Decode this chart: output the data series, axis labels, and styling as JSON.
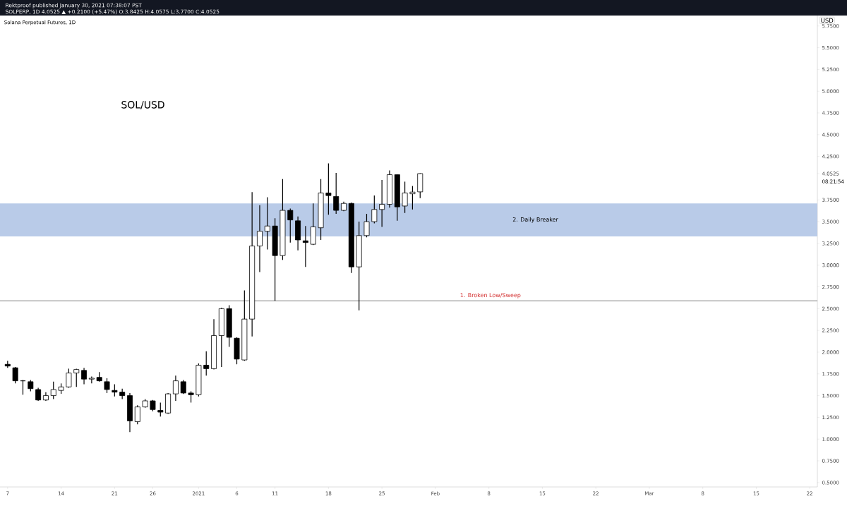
{
  "chart_data": {
    "type": "candlestick",
    "title": "SOL/USD",
    "subtitle": "Solana Perpetual Futures, 1D",
    "ylabel": "USD",
    "annotations": [
      "Rektproof published January 30, 2021 07:38:07 PST",
      "SOLPERP, 1D  4.0525 ▲ +0.2100 (+5.47%) O:3.8425 H:4.0575 L:3.7700 C:4.0525",
      "08:21:54"
    ],
    "x": [
      "2020-12-07",
      "2020-12-08",
      "2020-12-09",
      "2020-12-10",
      "2020-12-11",
      "2020-12-12",
      "2020-12-13",
      "2020-12-14",
      "2020-12-15",
      "2020-12-16",
      "2020-12-17",
      "2020-12-18",
      "2020-12-19",
      "2020-12-20",
      "2020-12-21",
      "2020-12-22",
      "2020-12-23",
      "2020-12-24",
      "2020-12-25",
      "2020-12-26",
      "2020-12-27",
      "2020-12-28",
      "2020-12-29",
      "2020-12-30",
      "2020-12-31",
      "2021-01-01",
      "2021-01-02",
      "2021-01-03",
      "2021-01-04",
      "2021-01-05",
      "2021-01-06",
      "2021-01-07",
      "2021-01-08",
      "2021-01-09",
      "2021-01-10",
      "2021-01-11",
      "2021-01-12",
      "2021-01-13",
      "2021-01-14",
      "2021-01-15",
      "2021-01-16",
      "2021-01-17",
      "2021-01-18",
      "2021-01-19",
      "2021-01-20",
      "2021-01-21",
      "2021-01-22",
      "2021-01-23",
      "2021-01-24",
      "2021-01-25",
      "2021-01-26",
      "2021-01-27",
      "2021-01-28",
      "2021-01-29",
      "2021-01-30"
    ],
    "ohlc": [
      [
        1.86,
        1.9,
        1.82,
        1.84
      ],
      [
        1.82,
        1.83,
        1.64,
        1.67
      ],
      [
        1.67,
        1.68,
        1.51,
        1.67
      ],
      [
        1.66,
        1.68,
        1.55,
        1.58
      ],
      [
        1.57,
        1.59,
        1.44,
        1.45
      ],
      [
        1.45,
        1.54,
        1.44,
        1.5
      ],
      [
        1.5,
        1.66,
        1.46,
        1.57
      ],
      [
        1.56,
        1.64,
        1.52,
        1.6
      ],
      [
        1.6,
        1.81,
        1.59,
        1.76
      ],
      [
        1.76,
        1.81,
        1.6,
        1.8
      ],
      [
        1.79,
        1.82,
        1.63,
        1.69
      ],
      [
        1.69,
        1.72,
        1.64,
        1.7
      ],
      [
        1.71,
        1.77,
        1.66,
        1.67
      ],
      [
        1.66,
        1.7,
        1.53,
        1.57
      ],
      [
        1.56,
        1.63,
        1.49,
        1.54
      ],
      [
        1.54,
        1.58,
        1.46,
        1.5
      ],
      [
        1.5,
        1.53,
        1.08,
        1.21
      ],
      [
        1.2,
        1.39,
        1.17,
        1.37
      ],
      [
        1.37,
        1.46,
        1.36,
        1.44
      ],
      [
        1.44,
        1.45,
        1.32,
        1.34
      ],
      [
        1.33,
        1.42,
        1.26,
        1.31
      ],
      [
        1.3,
        1.53,
        1.29,
        1.52
      ],
      [
        1.52,
        1.73,
        1.44,
        1.67
      ],
      [
        1.66,
        1.68,
        1.52,
        1.53
      ],
      [
        1.53,
        1.55,
        1.42,
        1.51
      ],
      [
        1.51,
        1.87,
        1.49,
        1.85
      ],
      [
        1.85,
        2.01,
        1.73,
        1.81
      ],
      [
        1.81,
        2.38,
        1.8,
        2.19
      ],
      [
        2.19,
        2.51,
        1.83,
        2.5
      ],
      [
        2.5,
        2.54,
        2.06,
        2.17
      ],
      [
        2.16,
        2.17,
        1.86,
        1.92
      ],
      [
        1.91,
        2.71,
        1.9,
        2.38
      ],
      [
        2.38,
        3.84,
        2.18,
        3.22
      ],
      [
        3.22,
        3.69,
        2.92,
        3.39
      ],
      [
        3.39,
        3.78,
        3.18,
        3.45
      ],
      [
        3.45,
        3.54,
        2.59,
        3.11
      ],
      [
        3.11,
        3.99,
        3.06,
        3.63
      ],
      [
        3.63,
        3.65,
        3.26,
        3.52
      ],
      [
        3.51,
        3.56,
        3.17,
        3.29
      ],
      [
        3.28,
        3.45,
        2.98,
        3.26
      ],
      [
        3.24,
        3.71,
        3.23,
        3.44
      ],
      [
        3.43,
        3.99,
        3.29,
        3.83
      ],
      [
        3.83,
        4.17,
        3.58,
        3.8
      ],
      [
        3.79,
        4.06,
        3.59,
        3.63
      ],
      [
        3.63,
        3.73,
        3.62,
        3.71
      ],
      [
        3.71,
        3.72,
        2.91,
        2.98
      ],
      [
        2.98,
        3.5,
        2.48,
        3.34
      ],
      [
        3.34,
        3.59,
        3.32,
        3.5
      ],
      [
        3.5,
        3.8,
        3.48,
        3.64
      ],
      [
        3.64,
        3.98,
        3.44,
        3.7
      ],
      [
        3.7,
        4.09,
        3.66,
        4.04
      ],
      [
        4.04,
        4.04,
        3.51,
        3.67
      ],
      [
        3.68,
        3.96,
        3.6,
        3.83
      ],
      [
        3.82,
        3.91,
        3.64,
        3.84
      ],
      [
        3.8425,
        4.0575,
        3.77,
        4.0525
      ]
    ],
    "xlim": [
      "2020-12-06",
      "2021-03-23"
    ],
    "xticks": [
      {
        "value": "2020-12-07",
        "label": "7"
      },
      {
        "value": "2020-12-14",
        "label": "14"
      },
      {
        "value": "2020-12-21",
        "label": "21"
      },
      {
        "value": "2020-12-26",
        "label": "26"
      },
      {
        "value": "2021-01-01",
        "label": "2021"
      },
      {
        "value": "2021-01-06",
        "label": "6"
      },
      {
        "value": "2021-01-11",
        "label": "11"
      },
      {
        "value": "2021-01-18",
        "label": "18"
      },
      {
        "value": "2021-01-25",
        "label": "25"
      },
      {
        "value": "2021-02-01",
        "label": "Feb"
      },
      {
        "value": "2021-02-08",
        "label": "8"
      },
      {
        "value": "2021-02-15",
        "label": "15"
      },
      {
        "value": "2021-02-22",
        "label": "22"
      },
      {
        "value": "2021-03-01",
        "label": "Mar"
      },
      {
        "value": "2021-03-08",
        "label": "8"
      },
      {
        "value": "2021-03-15",
        "label": "15"
      },
      {
        "value": "2021-03-22",
        "label": "22"
      }
    ],
    "ylim": [
      0.45,
      5.87
    ],
    "yticks": [
      {
        "value": 0.5,
        "label": "0.5000"
      },
      {
        "value": 0.75,
        "label": "0.7500"
      },
      {
        "value": 1.0,
        "label": "1.0000"
      },
      {
        "value": 1.25,
        "label": "1.2500"
      },
      {
        "value": 1.5,
        "label": "1.5000"
      },
      {
        "value": 1.75,
        "label": "1.7500"
      },
      {
        "value": 2.0,
        "label": "2.0000"
      },
      {
        "value": 2.25,
        "label": "2.2500"
      },
      {
        "value": 2.5,
        "label": "2.5000"
      },
      {
        "value": 2.75,
        "label": "2.7500"
      },
      {
        "value": 3.0,
        "label": "3.0000"
      },
      {
        "value": 3.25,
        "label": "3.2500"
      },
      {
        "value": 3.5,
        "label": "3.5000"
      },
      {
        "value": 3.75,
        "label": "3.7500"
      },
      {
        "value": 4.0525,
        "label": "4.0525"
      },
      {
        "value": 4.25,
        "label": "4.2500"
      },
      {
        "value": 4.5,
        "label": "4.5000"
      },
      {
        "value": 4.75,
        "label": "4.7500"
      },
      {
        "value": 5.0,
        "label": "5.0000"
      },
      {
        "value": 5.25,
        "label": "5.2500"
      },
      {
        "value": 5.5,
        "label": "5.5000"
      },
      {
        "value": 5.75,
        "label": "5.7500"
      }
    ],
    "ref_lines": [
      {
        "axis": "y",
        "value": 2.59,
        "label": "1. Broken Low/Sweep",
        "color": "#4a4a4a"
      }
    ],
    "bands": [
      {
        "axis": "y",
        "from": 3.33,
        "to": 3.71,
        "label": "2. Daily Breaker",
        "color": "#b9cbe8"
      }
    ]
  }
}
